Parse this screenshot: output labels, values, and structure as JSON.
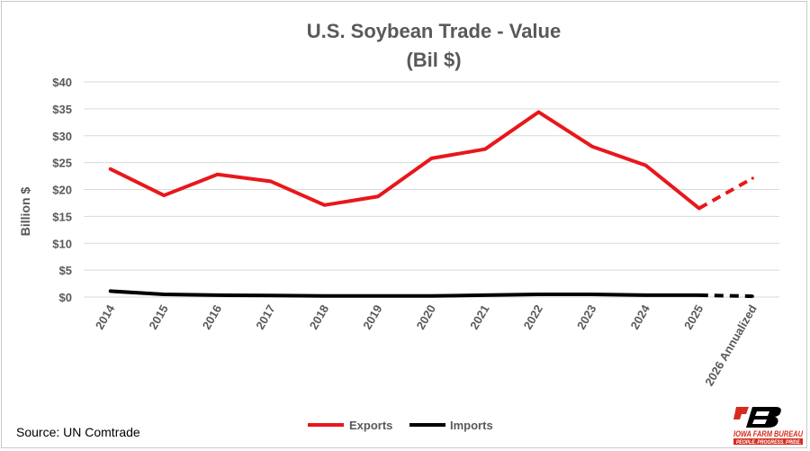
{
  "chart_data": {
    "type": "line",
    "title": "U.S. Soybean Trade - Value",
    "subtitle": "(Bil $)",
    "xlabel": "",
    "ylabel": "Billion $",
    "categories": [
      "2014",
      "2015",
      "2016",
      "2017",
      "2018",
      "2019",
      "2020",
      "2021",
      "2022",
      "2023",
      "2024",
      "2025",
      "2026 Annualized"
    ],
    "ylim": [
      0,
      40
    ],
    "yticks": [
      0,
      5,
      10,
      15,
      20,
      25,
      30,
      35,
      40
    ],
    "ytick_labels": [
      "$0",
      "$5",
      "$10",
      "$15",
      "$20",
      "$25",
      "$30",
      "$35",
      "$40"
    ],
    "grid": "horizontal",
    "legend_position": "bottom",
    "projected_from_index": 11,
    "series": [
      {
        "name": "Exports",
        "color": "#e8171b",
        "values": [
          23.8,
          18.9,
          22.8,
          21.5,
          17.1,
          18.7,
          25.8,
          27.5,
          34.4,
          28.0,
          24.5,
          16.5,
          22.1
        ]
      },
      {
        "name": "Imports",
        "color": "#000000",
        "values": [
          1.1,
          0.5,
          0.35,
          0.3,
          0.2,
          0.2,
          0.2,
          0.35,
          0.5,
          0.5,
          0.35,
          0.35,
          0.15
        ]
      }
    ]
  },
  "footer": {
    "source": "Source: UN Comtrade",
    "logo_name": "IOWA FARM BUREAU",
    "logo_tagline": "PEOPLE. PROGRESS. PRIDE.",
    "logo_mark": "FB"
  }
}
